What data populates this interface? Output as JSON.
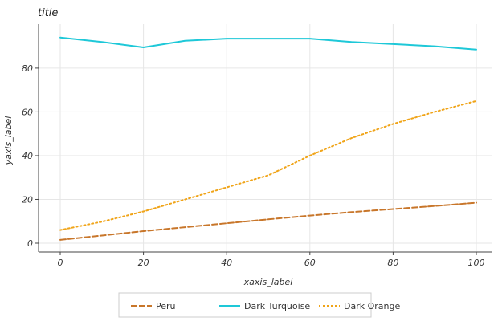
{
  "chart_data": {
    "type": "line",
    "title": "title",
    "xlabel": "xaxis_label",
    "ylabel": "yaxis_label",
    "xlim": [
      0,
      100
    ],
    "ylim": [
      0,
      95
    ],
    "x_ticks": [
      0,
      20,
      40,
      60,
      80,
      100
    ],
    "y_ticks": [
      0,
      20,
      40,
      60,
      80
    ],
    "grid": true,
    "legend_position": "bottom",
    "x": [
      0,
      10,
      20,
      30,
      40,
      50,
      60,
      70,
      80,
      90,
      100
    ],
    "series": [
      {
        "name": "Peru",
        "color": "#c8762a",
        "dash": "dashed",
        "values": [
          1.5,
          3.5,
          5.5,
          7.3,
          9.1,
          10.9,
          12.6,
          14.2,
          15.6,
          17.0,
          18.5
        ]
      },
      {
        "name": "Dark Turquoise",
        "color": "#1ec8d8",
        "dash": "solid",
        "values": [
          94,
          92,
          89.5,
          92.5,
          93.5,
          93.5,
          93.5,
          92,
          91,
          90,
          88.5
        ]
      },
      {
        "name": "Dark Orange",
        "color": "#f0a418",
        "dash": "dotted",
        "values": [
          6,
          9.8,
          14.5,
          20,
          25.5,
          31,
          40,
          48,
          54.5,
          60,
          65
        ]
      }
    ],
    "legend_order": [
      "Peru",
      "Dark Turquoise",
      "Dark Orange"
    ]
  }
}
